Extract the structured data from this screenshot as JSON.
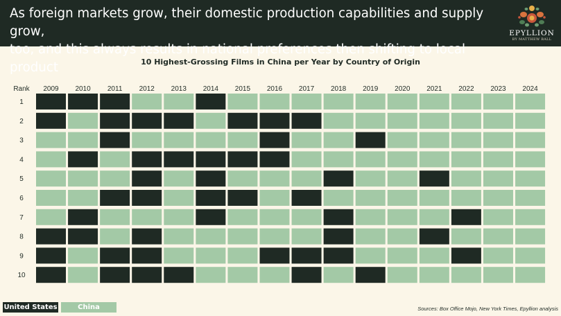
{
  "header": {
    "title": "As foreign markets grow, their domestic production capabilities and supply grow,\ntoo, and this always results in national preferences then shifting to local product",
    "logo_name": "EPYLLION",
    "logo_byline": "BY MATTHEW BALL"
  },
  "colors": {
    "header_bg": "#1f2a24",
    "us": "#1f2a24",
    "china": "#a3c9a6",
    "page_bg": "#fbf6e8"
  },
  "legend": {
    "us_label": "United States",
    "china_label": "China"
  },
  "sources": "Sources: Box Office Mojo, New York Times, Epyllion analysis",
  "chart_data": {
    "type": "heatmap",
    "title": "10 Highest-Grossing Films in China per Year by Country of Origin",
    "ylabel": "Rank",
    "years": [
      "2009",
      "2010",
      "2011",
      "2012",
      "2013",
      "2014",
      "2015",
      "2016",
      "2017",
      "2018",
      "2019",
      "2020",
      "2021",
      "2022",
      "2023",
      "2024"
    ],
    "ranks": [
      "1",
      "2",
      "3",
      "4",
      "5",
      "6",
      "7",
      "8",
      "9",
      "10"
    ],
    "categories": [
      "United States",
      "China"
    ],
    "cells": [
      [
        "United States",
        "United States",
        "United States",
        "China",
        "China",
        "United States",
        "China",
        "China",
        "China",
        "China",
        "China",
        "China",
        "China",
        "China",
        "China",
        "China"
      ],
      [
        "United States",
        "China",
        "United States",
        "United States",
        "United States",
        "China",
        "United States",
        "United States",
        "United States",
        "China",
        "China",
        "China",
        "China",
        "China",
        "China",
        "China"
      ],
      [
        "China",
        "China",
        "United States",
        "China",
        "China",
        "China",
        "China",
        "United States",
        "China",
        "China",
        "United States",
        "China",
        "China",
        "China",
        "China",
        "China"
      ],
      [
        "China",
        "United States",
        "China",
        "United States",
        "United States",
        "United States",
        "United States",
        "United States",
        "China",
        "China",
        "China",
        "China",
        "China",
        "China",
        "China",
        "China"
      ],
      [
        "China",
        "China",
        "China",
        "United States",
        "China",
        "United States",
        "China",
        "China",
        "China",
        "United States",
        "China",
        "China",
        "United States",
        "China",
        "China",
        "China"
      ],
      [
        "China",
        "China",
        "United States",
        "United States",
        "China",
        "United States",
        "United States",
        "China",
        "United States",
        "China",
        "China",
        "China",
        "China",
        "China",
        "China",
        "China"
      ],
      [
        "China",
        "United States",
        "China",
        "China",
        "China",
        "United States",
        "China",
        "China",
        "China",
        "United States",
        "China",
        "China",
        "China",
        "United States",
        "China",
        "China"
      ],
      [
        "United States",
        "United States",
        "China",
        "United States",
        "China",
        "China",
        "China",
        "China",
        "China",
        "United States",
        "China",
        "China",
        "United States",
        "China",
        "China",
        "China"
      ],
      [
        "United States",
        "China",
        "United States",
        "United States",
        "China",
        "China",
        "China",
        "United States",
        "United States",
        "United States",
        "China",
        "China",
        "China",
        "United States",
        "China",
        "China"
      ],
      [
        "United States",
        "China",
        "United States",
        "United States",
        "United States",
        "China",
        "China",
        "China",
        "United States",
        "China",
        "United States",
        "China",
        "China",
        "China",
        "China",
        "China"
      ]
    ]
  }
}
